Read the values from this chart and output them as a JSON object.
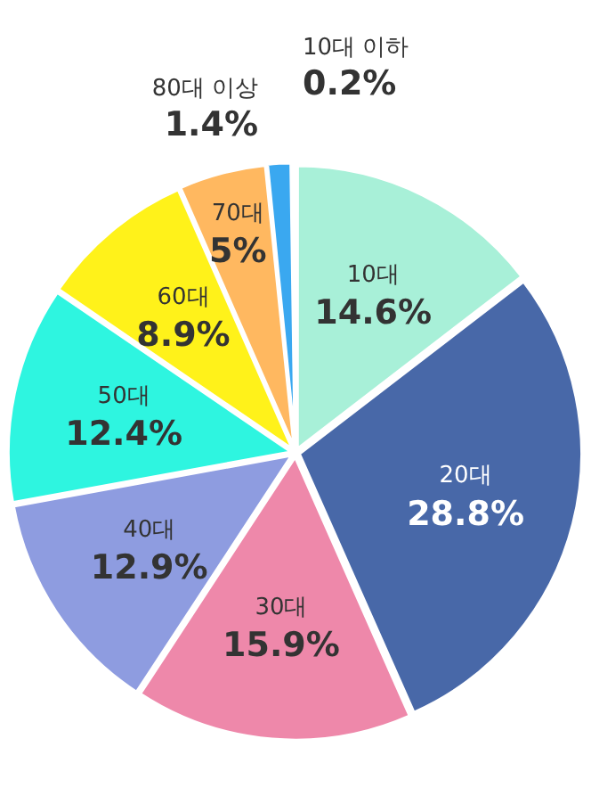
{
  "chart_data": {
    "type": "pie",
    "categories": [
      "10대",
      "20대",
      "30대",
      "40대",
      "50대",
      "60대",
      "70대",
      "80대 이상",
      "10대 이하"
    ],
    "values": [
      14.6,
      28.8,
      15.9,
      12.9,
      12.4,
      8.9,
      5,
      1.4,
      0.2
    ],
    "value_labels": [
      "14.6%",
      "28.8%",
      "15.9%",
      "12.9%",
      "12.4%",
      "8.9%",
      "5%",
      "1.4%",
      "0.2%"
    ],
    "colors": [
      "#a8f0d8",
      "#4868a8",
      "#ee88aa",
      "#8e9ce0",
      "#2ef5e0",
      "#fff21a",
      "#ffb860",
      "#3aa8f0",
      "#ffb8c8"
    ],
    "legend": false
  }
}
